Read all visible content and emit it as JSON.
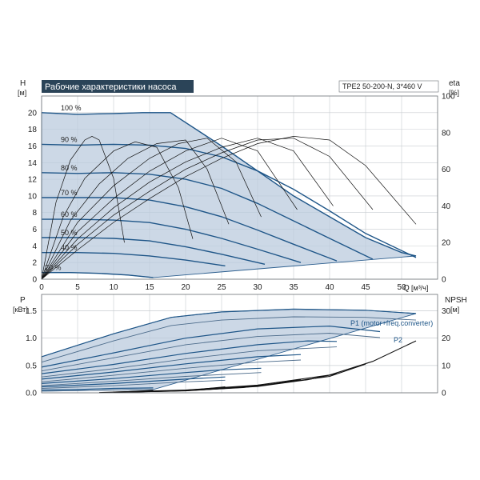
{
  "chart_data": [
    {
      "type": "line",
      "title": "Рабочие характеристики насоса",
      "model": "TPE2 50-200-N, 3*460 V",
      "xlabel": "Q [м³/ч]",
      "x_unit_name": "Q",
      "x_unit": "[м³/ч]",
      "ylabel": "H",
      "y_unit": "[м]",
      "y2label": "eta",
      "y2_unit": "[%]",
      "xlim": [
        0,
        55
      ],
      "ylim": [
        0,
        22
      ],
      "y2lim": [
        0,
        100
      ],
      "x_ticks": [
        0,
        5,
        10,
        15,
        20,
        25,
        30,
        35,
        40,
        45,
        50
      ],
      "y_ticks": [
        0,
        2,
        4,
        6,
        8,
        10,
        12,
        14,
        16,
        18,
        20
      ],
      "y2_ticks": [
        0,
        20,
        40,
        60,
        80,
        100
      ],
      "grid": true,
      "operating_area_color": "#b8c9dc",
      "curve_color": "#1f5688",
      "series": [
        {
          "name": "100 %",
          "x": [
            0,
            5,
            10,
            14,
            17.9,
            25,
            35,
            45,
            50,
            52
          ],
          "y": [
            20.0,
            19.8,
            19.9,
            20.0,
            20.0,
            16.0,
            10.0,
            5.0,
            3.2,
            2.8
          ]
        },
        {
          "name": "90 %",
          "x": [
            0,
            5,
            10,
            15,
            20,
            25,
            30,
            35,
            40,
            45,
            52
          ],
          "y": [
            16.2,
            16.1,
            16.2,
            16.1,
            15.7,
            14.7,
            13.0,
            10.8,
            8.2,
            5.5,
            2.6
          ]
        },
        {
          "name": "80 %",
          "x": [
            0,
            5,
            10,
            15,
            20,
            25,
            30,
            35,
            40,
            46
          ],
          "y": [
            12.8,
            12.7,
            12.8,
            12.6,
            12.0,
            10.9,
            9.1,
            7.0,
            4.9,
            2.4
          ]
        },
        {
          "name": "70 %",
          "x": [
            0,
            5,
            10,
            15,
            20,
            25,
            30,
            35,
            41
          ],
          "y": [
            9.8,
            9.8,
            9.8,
            9.5,
            8.7,
            7.5,
            5.9,
            4.2,
            2.2
          ]
        },
        {
          "name": "60 %",
          "x": [
            0,
            5,
            10,
            15,
            20,
            25,
            30,
            36
          ],
          "y": [
            7.2,
            7.2,
            7.1,
            6.8,
            6.0,
            4.9,
            3.6,
            2.0
          ]
        },
        {
          "name": "50 %",
          "x": [
            0,
            5,
            10,
            15,
            20,
            25,
            31
          ],
          "y": [
            5.0,
            5.0,
            4.9,
            4.6,
            3.9,
            3.0,
            1.8
          ]
        },
        {
          "name": "40 %",
          "x": [
            0,
            5,
            10,
            15,
            20,
            25.5
          ],
          "y": [
            3.2,
            3.2,
            3.1,
            2.8,
            2.3,
            1.6
          ]
        },
        {
          "name": "20 %",
          "x": [
            0,
            4,
            8,
            12,
            15.5
          ],
          "y": [
            0.8,
            0.8,
            0.7,
            0.5,
            0.2
          ]
        }
      ],
      "efficiency_curves_eta_pct": [
        {
          "x": [
            0,
            2,
            4,
            6,
            7,
            8,
            10,
            11.5
          ],
          "y": [
            0,
            42,
            65,
            76,
            78,
            76,
            55,
            20
          ]
        },
        {
          "x": [
            0,
            3,
            6,
            10,
            13,
            16,
            19,
            21
          ],
          "y": [
            0,
            34,
            55,
            70,
            75,
            72,
            50,
            22
          ]
        },
        {
          "x": [
            0,
            4,
            8,
            12,
            16,
            20,
            23,
            26
          ],
          "y": [
            0,
            32,
            52,
            66,
            74,
            76,
            60,
            30
          ]
        },
        {
          "x": [
            0,
            5,
            10,
            15,
            19,
            23,
            27,
            30.5
          ],
          "y": [
            0,
            31,
            51,
            66,
            74,
            77,
            64,
            34
          ]
        },
        {
          "x": [
            0,
            5,
            10,
            15,
            20,
            25,
            30,
            35.5
          ],
          "y": [
            0,
            26,
            44,
            59,
            70,
            77,
            70,
            38
          ]
        },
        {
          "x": [
            0,
            5,
            10,
            15,
            20,
            25,
            30,
            35,
            40.5
          ],
          "y": [
            0,
            22,
            39,
            53,
            64,
            72,
            77,
            70,
            40
          ]
        },
        {
          "x": [
            0,
            5,
            10,
            15,
            20,
            25,
            30,
            35,
            40,
            46
          ],
          "y": [
            0,
            19,
            35,
            48,
            60,
            69,
            76,
            77,
            67,
            38
          ]
        },
        {
          "x": [
            0,
            5,
            10,
            15,
            20,
            25,
            30,
            35,
            40,
            45,
            52
          ],
          "y": [
            0,
            16,
            31,
            44,
            56,
            66,
            74,
            78,
            76,
            62,
            30
          ]
        }
      ]
    },
    {
      "type": "line",
      "xlim": [
        0,
        55
      ],
      "ylabel": "P",
      "y_unit": "[кВт]",
      "y2label": "NPSH",
      "y2_unit": "[м]",
      "ylim": [
        0,
        1.8
      ],
      "y2lim": [
        0,
        36
      ],
      "y_ticks": [
        0.0,
        0.5,
        1.0,
        1.5
      ],
      "y_tick_labels": [
        "0.0",
        "0.5",
        "1.0",
        "1.5"
      ],
      "y2_ticks": [
        0,
        10,
        20,
        30
      ],
      "grid": true,
      "annotations": [
        "P1 (motor+freq.converter)",
        "P2"
      ],
      "p1_curves": [
        {
          "x": [
            0,
            10,
            18,
            25,
            35,
            45,
            52
          ],
          "y": [
            0.66,
            1.08,
            1.38,
            1.48,
            1.53,
            1.51,
            1.45
          ]
        },
        {
          "x": [
            0,
            10,
            20,
            30,
            40,
            47
          ],
          "y": [
            0.47,
            0.73,
            1.0,
            1.17,
            1.22,
            1.12
          ]
        },
        {
          "x": [
            0,
            10,
            20,
            30,
            37,
            41
          ],
          "y": [
            0.35,
            0.52,
            0.72,
            0.88,
            0.95,
            0.94
          ]
        },
        {
          "x": [
            0,
            10,
            20,
            30,
            36
          ],
          "y": [
            0.25,
            0.38,
            0.53,
            0.66,
            0.7
          ]
        },
        {
          "x": [
            0,
            10,
            20,
            25,
            30.5
          ],
          "y": [
            0.17,
            0.26,
            0.37,
            0.42,
            0.45
          ]
        },
        {
          "x": [
            0,
            10,
            20,
            25.5
          ],
          "y": [
            0.11,
            0.17,
            0.25,
            0.29
          ]
        },
        {
          "x": [
            0,
            5,
            10,
            15.5
          ],
          "y": [
            0.05,
            0.06,
            0.08,
            0.09
          ]
        }
      ],
      "p2_curves": [
        {
          "x": [
            0,
            10,
            18,
            25,
            35,
            45,
            52
          ],
          "y": [
            0.56,
            0.95,
            1.23,
            1.33,
            1.39,
            1.38,
            1.33
          ]
        },
        {
          "x": [
            0,
            10,
            20,
            30,
            40,
            47
          ],
          "y": [
            0.4,
            0.64,
            0.88,
            1.03,
            1.09,
            1.01
          ]
        },
        {
          "x": [
            0,
            10,
            20,
            30,
            41
          ],
          "y": [
            0.29,
            0.44,
            0.62,
            0.77,
            0.84
          ]
        },
        {
          "x": [
            0,
            10,
            20,
            30,
            36
          ],
          "y": [
            0.2,
            0.32,
            0.45,
            0.56,
            0.6
          ]
        },
        {
          "x": [
            0,
            10,
            20,
            30.5
          ],
          "y": [
            0.13,
            0.21,
            0.3,
            0.37
          ]
        },
        {
          "x": [
            0,
            10,
            20,
            25.5
          ],
          "y": [
            0.08,
            0.13,
            0.2,
            0.23
          ]
        },
        {
          "x": [
            0,
            5,
            10,
            15.5
          ],
          "y": [
            0.03,
            0.04,
            0.05,
            0.06
          ]
        }
      ],
      "npsh_curves_m": [
        {
          "x": [
            10,
            20,
            30,
            40,
            46,
            52
          ],
          "y": [
            0.3,
            1.0,
            2.8,
            6.5,
            11.5,
            19.0
          ]
        },
        {
          "x": [
            10,
            20,
            30,
            40,
            45
          ],
          "y": [
            0.2,
            0.9,
            2.5,
            6.0,
            10.5
          ]
        },
        {
          "x": [
            10,
            20,
            30,
            37,
            41
          ],
          "y": [
            0.2,
            0.8,
            2.3,
            4.8,
            7.0
          ]
        },
        {
          "x": [
            10,
            20,
            28,
            32,
            36
          ],
          "y": [
            0.2,
            0.8,
            1.9,
            3.2,
            4.8
          ]
        },
        {
          "x": [
            10,
            20,
            26,
            30.5
          ],
          "y": [
            0.2,
            0.7,
            1.7,
            2.9
          ]
        },
        {
          "x": [
            10,
            18,
            22,
            25.5
          ],
          "y": [
            0.2,
            0.6,
            1.3,
            2.2
          ]
        },
        {
          "x": [
            8,
            12,
            15.5
          ],
          "y": [
            0.1,
            0.4,
            0.9
          ]
        }
      ]
    }
  ]
}
